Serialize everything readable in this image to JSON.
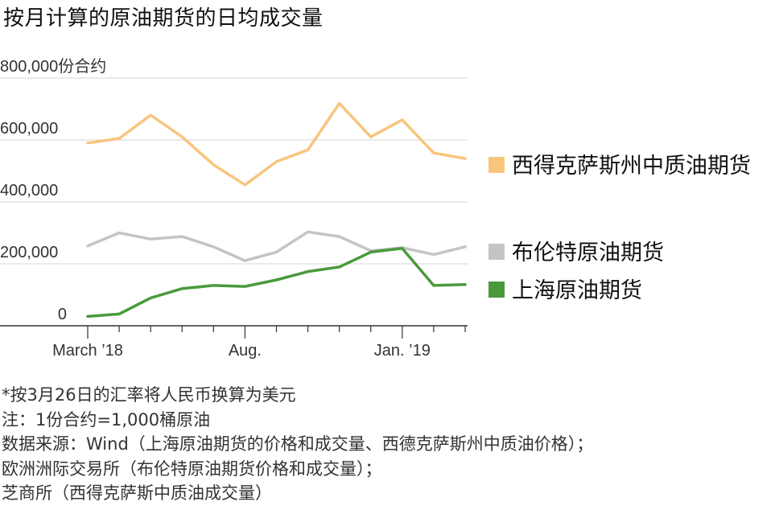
{
  "title": "按月计算的原油期货的日均成交量",
  "chart_data": {
    "type": "line",
    "title": "按月计算的原油期货的日均成交量",
    "y_unit": "份合约",
    "ylim": [
      0,
      800000
    ],
    "yticks": [
      0,
      200000,
      400000,
      600000,
      800000
    ],
    "ytick_labels": [
      "0",
      "200,000",
      "400,000",
      "600,000",
      "800,000"
    ],
    "x": [
      "2018-03",
      "2018-04",
      "2018-05",
      "2018-06",
      "2018-07",
      "2018-08",
      "2018-09",
      "2018-10",
      "2018-11",
      "2018-12",
      "2019-01",
      "2019-02",
      "2019-03"
    ],
    "xtick_labels": [
      {
        "month": "2018-03",
        "label": "March ’18"
      },
      {
        "month": "2018-08",
        "label": "Aug."
      },
      {
        "month": "2019-01",
        "label": "Jan. ’19"
      }
    ],
    "grid": true,
    "legend": "right",
    "series": [
      {
        "name": "西得克萨斯州中质油期货",
        "color": "#f8c57c",
        "values": [
          590000,
          605000,
          680000,
          610000,
          520000,
          455000,
          530000,
          568000,
          718000,
          610000,
          665000,
          558000,
          540000
        ]
      },
      {
        "name": "布伦特原油期货",
        "color": "#c4c4c4",
        "values": [
          258000,
          300000,
          280000,
          288000,
          255000,
          210000,
          238000,
          303000,
          288000,
          242000,
          252000,
          230000,
          255000
        ]
      },
      {
        "name": "上海原油期货",
        "color": "#4a9a3c",
        "values": [
          30000,
          38000,
          90000,
          120000,
          130000,
          127000,
          148000,
          175000,
          190000,
          238000,
          250000,
          130000,
          133000
        ]
      }
    ]
  },
  "notes": [
    "*按3月26日的汇率将人民币换算为美元",
    "注：1份合约=1,000桶原油",
    "数据来源：Wind（上海原油期货的价格和成交量、西德克萨斯州中质油价格）；",
    "欧洲洲际交易所（布伦特原油期货价格和成交量）；",
    "芝商所（西得克萨斯中质油成交量）"
  ]
}
